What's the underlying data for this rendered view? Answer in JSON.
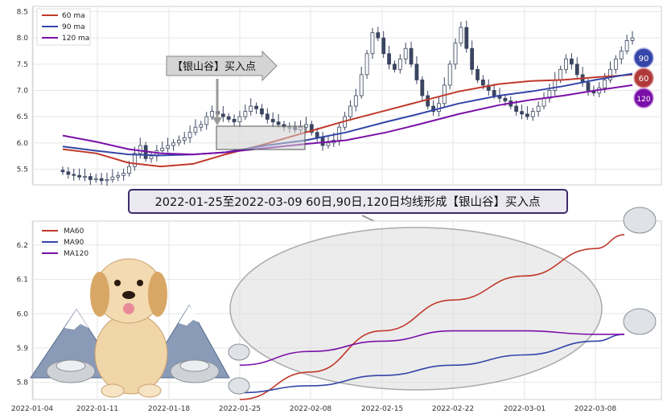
{
  "colors": {
    "ma60": "#c0392b",
    "ma90": "#3545a8",
    "ma120": "#7a10a8",
    "up_candle": "#ffffff",
    "down_candle": "#3a4560",
    "grid": "#e6e6e6",
    "axis": "#333333"
  },
  "top_panel": {
    "legend": [
      "60 ma",
      "90 ma",
      "120 ma"
    ],
    "signal_label": "【银山谷】买入点",
    "badges": [
      "90",
      "60",
      "120"
    ]
  },
  "banner": {
    "text": "2022-01-25至2022-03-09 60日,90日,120日均线形成【银山谷】买入点"
  },
  "bottom_panel": {
    "legend": [
      "MA60",
      "MA90",
      "MA120"
    ]
  },
  "x_ticks": [
    "2022-01-04",
    "2022-01-11",
    "2022-01-18",
    "2022-01-25",
    "2022-02-08",
    "2022-02-15",
    "2022-02-22",
    "2022-03-01",
    "2022-03-08"
  ],
  "icons": [
    "silver-cup-icon",
    "silver-ingot-icon",
    "dog-mascot-icon",
    "mountain-icon"
  ],
  "chart_data": [
    {
      "type": "candlestick",
      "ylim": [
        5.2,
        8.6
      ],
      "yticks": [
        5.5,
        6.0,
        6.5,
        7.0,
        7.5,
        8.0,
        8.5
      ],
      "close": [
        5.45,
        5.4,
        5.38,
        5.35,
        5.36,
        5.3,
        5.32,
        5.28,
        5.3,
        5.35,
        5.38,
        5.42,
        5.55,
        5.8,
        5.95,
        5.7,
        5.75,
        5.85,
        5.9,
        5.95,
        6.0,
        6.05,
        6.1,
        6.2,
        6.3,
        6.35,
        6.5,
        6.6,
        6.55,
        6.5,
        6.45,
        6.4,
        6.5,
        6.6,
        6.7,
        6.65,
        6.55,
        6.45,
        6.4,
        6.35,
        6.3,
        6.3,
        6.25,
        6.3,
        6.35,
        6.2,
        6.1,
        5.95,
        6.0,
        6.05,
        6.3,
        6.5,
        6.7,
        6.9,
        7.3,
        7.7,
        8.1,
        8.0,
        7.7,
        7.5,
        7.4,
        7.6,
        7.8,
        7.5,
        7.2,
        6.9,
        6.7,
        6.6,
        6.75,
        7.1,
        7.5,
        7.9,
        8.2,
        7.8,
        7.4,
        7.2,
        7.1,
        7.0,
        6.9,
        6.85,
        6.8,
        6.7,
        6.6,
        6.55,
        6.5,
        6.6,
        6.7,
        6.85,
        7.0,
        7.2,
        7.4,
        7.6,
        7.5,
        7.3,
        7.15,
        7.0,
        6.95,
        7.05,
        7.2,
        7.4,
        7.6,
        7.75,
        7.95,
        8.0
      ]
    },
    {
      "type": "line",
      "series": [
        {
          "name": "MA60",
          "x": [
            "2022-01-25",
            "2022-02-08",
            "2022-02-15",
            "2022-02-22",
            "2022-03-01",
            "2022-03-08",
            "2022-03-10"
          ],
          "values": [
            5.75,
            5.83,
            5.95,
            6.04,
            6.11,
            6.19,
            6.23
          ]
        },
        {
          "name": "MA90",
          "x": [
            "2022-01-25",
            "2022-02-08",
            "2022-02-15",
            "2022-02-22",
            "2022-03-01",
            "2022-03-08",
            "2022-03-10"
          ],
          "values": [
            5.77,
            5.79,
            5.82,
            5.85,
            5.88,
            5.92,
            5.94
          ]
        },
        {
          "name": "MA120",
          "x": [
            "2022-01-25",
            "2022-02-08",
            "2022-02-15",
            "2022-02-22",
            "2022-03-01",
            "2022-03-08",
            "2022-03-10"
          ],
          "values": [
            5.85,
            5.89,
            5.92,
            5.95,
            5.95,
            5.94,
            5.94
          ]
        }
      ],
      "ylim": [
        5.75,
        6.27
      ],
      "yticks": [
        5.8,
        5.9,
        6.0,
        6.1,
        6.2
      ]
    }
  ]
}
